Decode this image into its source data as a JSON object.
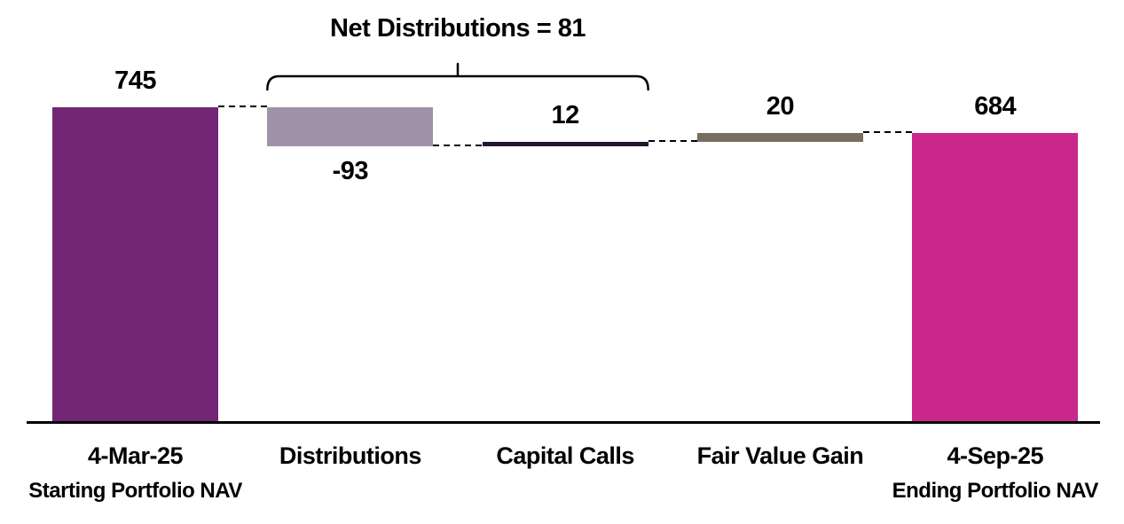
{
  "chart_data": {
    "type": "bar",
    "subtype": "waterfall",
    "title": "",
    "categories": [
      "4-Mar-25",
      "Distributions",
      "Capital Calls",
      "Fair Value Gain",
      "4-Sep-25"
    ],
    "bars": [
      {
        "id": "starting-nav",
        "category": "4-Mar-25",
        "sub_label": "Starting Portfolio NAV",
        "kind": "total",
        "value": 745,
        "value_label": "745",
        "color": "#722673",
        "label_position": "above"
      },
      {
        "id": "distributions",
        "category": "Distributions",
        "sub_label": "",
        "kind": "delta",
        "value": -93,
        "value_label": "-93",
        "color": "#A092A6",
        "label_position": "below"
      },
      {
        "id": "capital-calls",
        "category": "Capital Calls",
        "sub_label": "",
        "kind": "delta",
        "value": 12,
        "value_label": "12",
        "color": "#251431",
        "label_position": "above"
      },
      {
        "id": "fair-value-gain",
        "category": "Fair Value Gain",
        "sub_label": "",
        "kind": "delta",
        "value": 20,
        "value_label": "20",
        "color": "#776F5D",
        "label_position": "above"
      },
      {
        "id": "ending-nav",
        "category": "4-Sep-25",
        "sub_label": "Ending Portfolio NAV",
        "kind": "total",
        "value": 684,
        "value_label": "684",
        "color": "#C9278A",
        "label_position": "above"
      }
    ],
    "annotation": {
      "text": "Net Distributions = 81",
      "value": 81,
      "from_category": "Distributions",
      "to_category": "Capital Calls"
    },
    "ylim": [
      0,
      745
    ],
    "grid": false,
    "legend": false,
    "background": "#ffffff",
    "axis_color": "#000000",
    "text_color": "#000000",
    "connector_style": "dashed-black"
  }
}
